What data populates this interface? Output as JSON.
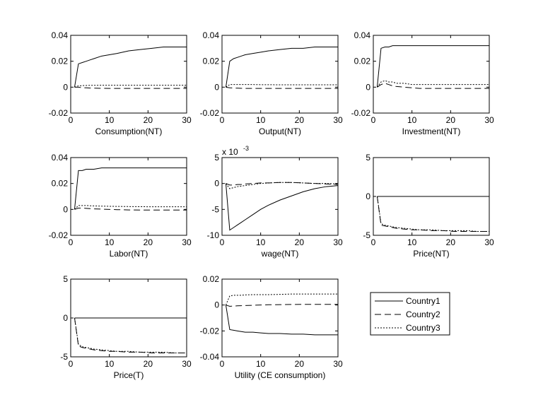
{
  "chart_data": [
    {
      "type": "line",
      "xlabel": "Consumption(NT)",
      "xlim": [
        0,
        30
      ],
      "xticks": [
        0,
        10,
        20,
        30
      ],
      "ylim": [
        -0.02,
        0.04
      ],
      "yticks": [
        -0.02,
        0,
        0.02,
        0.04
      ],
      "x": [
        1,
        2,
        3,
        4,
        5,
        6,
        8,
        10,
        12,
        15,
        18,
        21,
        24,
        27,
        30
      ],
      "series": [
        {
          "name": "Country1",
          "color": "#000000",
          "line_style": "-",
          "values": [
            0,
            0.018,
            0.019,
            0.02,
            0.021,
            0.022,
            0.024,
            0.025,
            0.026,
            0.028,
            0.029,
            0.03,
            0.031,
            0.031,
            0.031
          ]
        },
        {
          "name": "Country2",
          "color": "#000000",
          "line_style": "--",
          "values": [
            0,
            0,
            -0.0005,
            -0.0005,
            -0.0007,
            -0.0008,
            -0.0009,
            -0.001,
            -0.001,
            -0.001,
            -0.001,
            -0.001,
            -0.001,
            -0.001,
            -0.001
          ]
        },
        {
          "name": "Country3",
          "color": "#000000",
          "line_style": ":",
          "values": [
            0,
            0.001,
            0.0012,
            0.0013,
            0.0014,
            0.0014,
            0.0015,
            0.0015,
            0.0015,
            0.0015,
            0.0015,
            0.0015,
            0.0015,
            0.0015,
            0.0015
          ]
        }
      ],
      "legend": "outside-lower-right"
    },
    {
      "type": "line",
      "xlabel": "Output(NT)",
      "xlim": [
        0,
        30
      ],
      "xticks": [
        0,
        10,
        20,
        30
      ],
      "ylim": [
        -0.02,
        0.04
      ],
      "yticks": [
        -0.02,
        0,
        0.02,
        0.04
      ],
      "x": [
        1,
        2,
        3,
        4,
        5,
        6,
        8,
        10,
        12,
        15,
        18,
        21,
        24,
        27,
        30
      ],
      "series": [
        {
          "color": "#000000",
          "line_style": "-",
          "values": [
            0,
            0.02,
            0.022,
            0.023,
            0.024,
            0.025,
            0.026,
            0.027,
            0.028,
            0.029,
            0.03,
            0.03,
            0.031,
            0.031,
            0.031
          ]
        },
        {
          "color": "#000000",
          "line_style": "--",
          "values": [
            0,
            -0.0005,
            -0.0007,
            -0.0008,
            -0.0009,
            -0.001,
            -0.001,
            -0.001,
            -0.001,
            -0.001,
            -0.001,
            -0.001,
            -0.001,
            -0.001,
            -0.001
          ]
        },
        {
          "color": "#000000",
          "line_style": ":",
          "values": [
            0,
            0.002,
            0.002,
            0.002,
            0.002,
            0.002,
            0.002,
            0.0019,
            0.0019,
            0.0018,
            0.0018,
            0.0018,
            0.0018,
            0.0018,
            0.0018
          ]
        }
      ]
    },
    {
      "type": "line",
      "xlabel": "Investment(NT)",
      "xlim": [
        0,
        30
      ],
      "xticks": [
        0,
        10,
        20,
        30
      ],
      "ylim": [
        -0.02,
        0.04
      ],
      "yticks": [
        -0.02,
        0,
        0.02,
        0.04
      ],
      "x": [
        1,
        2,
        3,
        4,
        5,
        6,
        8,
        10,
        12,
        15,
        18,
        21,
        24,
        27,
        30
      ],
      "series": [
        {
          "color": "#000000",
          "line_style": "-",
          "values": [
            0,
            0.03,
            0.031,
            0.031,
            0.032,
            0.032,
            0.032,
            0.032,
            0.032,
            0.032,
            0.032,
            0.032,
            0.032,
            0.032,
            0.032
          ]
        },
        {
          "color": "#000000",
          "line_style": "--",
          "values": [
            0,
            0.002,
            0.003,
            0.002,
            0.001,
            0.0005,
            0,
            -0.0005,
            -0.001,
            -0.001,
            -0.001,
            -0.001,
            -0.001,
            -0.001,
            -0.001
          ]
        },
        {
          "color": "#000000",
          "line_style": ":",
          "values": [
            0,
            0.004,
            0.005,
            0.004,
            0.004,
            0.003,
            0.003,
            0.002,
            0.002,
            0.002,
            0.002,
            0.002,
            0.002,
            0.002,
            0.002
          ]
        }
      ]
    },
    {
      "type": "line",
      "xlabel": "Labor(NT)",
      "xlim": [
        0,
        30
      ],
      "xticks": [
        0,
        10,
        20,
        30
      ],
      "ylim": [
        -0.02,
        0.04
      ],
      "yticks": [
        -0.02,
        0,
        0.02,
        0.04
      ],
      "x": [
        1,
        2,
        3,
        4,
        5,
        6,
        8,
        10,
        12,
        15,
        18,
        21,
        24,
        27,
        30
      ],
      "series": [
        {
          "color": "#000000",
          "line_style": "-",
          "values": [
            0,
            0.03,
            0.03,
            0.031,
            0.031,
            0.031,
            0.032,
            0.032,
            0.032,
            0.032,
            0.032,
            0.032,
            0.032,
            0.032,
            0.032
          ]
        },
        {
          "color": "#000000",
          "line_style": "--",
          "values": [
            0,
            0.001,
            0.001,
            0.0008,
            0.0006,
            0.0004,
            0.0002,
            0,
            -0.0002,
            -0.0004,
            -0.0005,
            -0.0005,
            -0.0005,
            -0.0005,
            -0.0005
          ]
        },
        {
          "color": "#000000",
          "line_style": ":",
          "values": [
            0,
            0.003,
            0.003,
            0.003,
            0.0028,
            0.0027,
            0.0025,
            0.0024,
            0.0023,
            0.0022,
            0.0021,
            0.002,
            0.002,
            0.002,
            0.002
          ]
        }
      ]
    },
    {
      "type": "line",
      "xlabel": "wage(NT)",
      "axis_multiplier": {
        "base": "x 10",
        "exponent": "-3"
      },
      "xlim": [
        0,
        30
      ],
      "xticks": [
        0,
        10,
        20,
        30
      ],
      "ylim": [
        -10,
        5
      ],
      "yticks": [
        -10,
        -5,
        0,
        5
      ],
      "x": [
        1,
        2,
        3,
        4,
        5,
        6,
        8,
        10,
        12,
        15,
        18,
        21,
        24,
        27,
        30
      ],
      "series": [
        {
          "color": "#000000",
          "line_style": "-",
          "values": [
            0,
            -9,
            -8.5,
            -8,
            -7.5,
            -7,
            -6,
            -5,
            -4.2,
            -3.2,
            -2.4,
            -1.6,
            -1,
            -0.6,
            -0.4
          ]
        },
        {
          "color": "#000000",
          "line_style": "--",
          "values": [
            0,
            -0.3,
            -0.3,
            -0.2,
            -0.2,
            -0.1,
            0,
            0.1,
            0.1,
            0.2,
            0.2,
            0.1,
            0,
            -0.1,
            -0.2
          ]
        },
        {
          "color": "#000000",
          "line_style": ":",
          "values": [
            0,
            -1,
            -0.8,
            -0.6,
            -0.5,
            -0.4,
            -0.2,
            0,
            0.1,
            0.2,
            0.2,
            0.1,
            0,
            0,
            -0.1
          ]
        }
      ]
    },
    {
      "type": "line",
      "xlabel": "Price(NT)",
      "xlim": [
        0,
        30
      ],
      "xticks": [
        0,
        10,
        20,
        30
      ],
      "ylim": [
        -5,
        5
      ],
      "yticks": [
        -5,
        0,
        5
      ],
      "x": [
        1,
        2,
        3,
        4,
        5,
        6,
        8,
        10,
        12,
        15,
        18,
        21,
        24,
        27,
        30
      ],
      "series": [
        {
          "color": "#000000",
          "line_style": "-",
          "values": [
            0,
            0,
            0,
            0,
            0,
            0,
            0,
            0,
            0,
            0,
            0,
            0,
            0,
            0,
            0
          ]
        },
        {
          "color": "#000000",
          "line_style": "--",
          "values": [
            0,
            -3.7,
            -3.8,
            -3.9,
            -4,
            -4.1,
            -4.2,
            -4.3,
            -4.3,
            -4.4,
            -4.4,
            -4.5,
            -4.5,
            -4.5,
            -4.5
          ]
        },
        {
          "color": "#000000",
          "line_style": ":",
          "values": [
            0,
            -3.5,
            -3.7,
            -3.8,
            -3.9,
            -4,
            -4.1,
            -4.2,
            -4.3,
            -4.3,
            -4.4,
            -4.4,
            -4.4,
            -4.5,
            -4.5
          ]
        }
      ]
    },
    {
      "type": "line",
      "xlabel": "Price(T)",
      "xlim": [
        0,
        30
      ],
      "xticks": [
        0,
        10,
        20,
        30
      ],
      "ylim": [
        -5,
        5
      ],
      "yticks": [
        -5,
        0,
        5
      ],
      "x": [
        1,
        2,
        3,
        4,
        5,
        6,
        8,
        10,
        12,
        15,
        18,
        21,
        24,
        27,
        30
      ],
      "series": [
        {
          "color": "#000000",
          "line_style": "-",
          "values": [
            0,
            0,
            0,
            0,
            0,
            0,
            0,
            0,
            0,
            0,
            0,
            0,
            0,
            0,
            0
          ]
        },
        {
          "color": "#000000",
          "line_style": "--",
          "values": [
            0,
            -3.6,
            -3.8,
            -3.9,
            -4,
            -4.1,
            -4.2,
            -4.3,
            -4.3,
            -4.4,
            -4.4,
            -4.5,
            -4.5,
            -4.5,
            -4.5
          ]
        },
        {
          "color": "#000000",
          "line_style": ":",
          "values": [
            0,
            -3.4,
            -3.7,
            -3.8,
            -3.9,
            -4,
            -4.1,
            -4.2,
            -4.3,
            -4.3,
            -4.4,
            -4.4,
            -4.4,
            -4.5,
            -4.5
          ]
        }
      ]
    },
    {
      "type": "line",
      "xlabel": "Utility (CE consumption)",
      "xlim": [
        0,
        30
      ],
      "xticks": [
        0,
        10,
        20,
        30
      ],
      "ylim": [
        -0.04,
        0.02
      ],
      "yticks": [
        -0.04,
        -0.02,
        0,
        0.02
      ],
      "x": [
        1,
        2,
        3,
        4,
        5,
        6,
        8,
        10,
        12,
        15,
        18,
        21,
        24,
        27,
        30
      ],
      "series": [
        {
          "color": "#000000",
          "line_style": "-",
          "values": [
            0,
            -0.019,
            -0.0195,
            -0.02,
            -0.0205,
            -0.021,
            -0.021,
            -0.0215,
            -0.022,
            -0.022,
            -0.0225,
            -0.0225,
            -0.023,
            -0.023,
            -0.023
          ]
        },
        {
          "color": "#000000",
          "line_style": "--",
          "values": [
            0,
            -0.001,
            -0.0008,
            -0.0006,
            -0.0005,
            -0.0004,
            -0.0002,
            0,
            0.0002,
            0.0003,
            0.0004,
            0.0005,
            0.0005,
            0.0005,
            0.0005
          ]
        },
        {
          "color": "#000000",
          "line_style": ":",
          "values": [
            0,
            0.007,
            0.0075,
            0.0075,
            0.0075,
            0.0078,
            0.008,
            0.008,
            0.008,
            0.0082,
            0.0085,
            0.0085,
            0.0085,
            0.0085,
            0.0085
          ]
        }
      ]
    }
  ]
}
